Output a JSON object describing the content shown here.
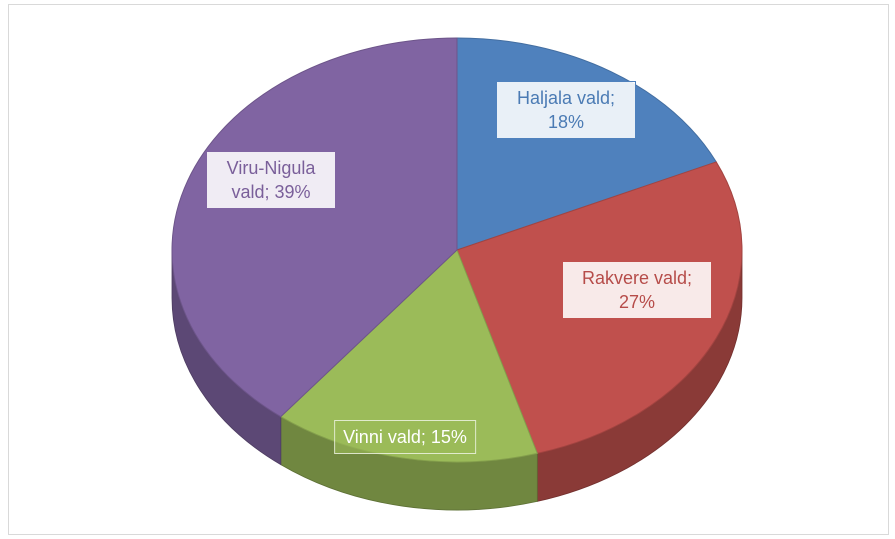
{
  "chart_data": {
    "type": "pie3d",
    "value_labels": [
      "Haljala vald; 18%",
      "Rakvere vald; 27%",
      "Vinni vald; 15%",
      "Viru-Nigula vald; 39%"
    ],
    "values": [
      18,
      27,
      15,
      39
    ],
    "colors": [
      "#4f81bd",
      "#c0504d",
      "#9bbb59",
      "#8064a2"
    ]
  }
}
